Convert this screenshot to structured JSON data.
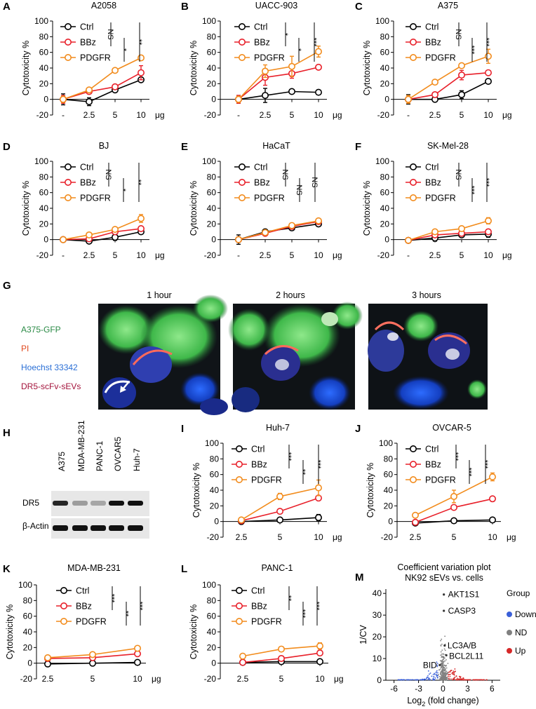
{
  "colors": {
    "Ctrl": "#000000",
    "BBz": "#e8202a",
    "PDGFR": "#f28c1d",
    "micro_gfp": "#2a8a45",
    "micro_pi": "#e0481e",
    "micro_hoechst": "#2a6fd6",
    "micro_dr5": "#a3123a",
    "volcano_down": "#3a5fd8",
    "volcano_nd": "#808080",
    "volcano_up": "#d62828"
  },
  "chart_data": [
    {
      "id": "A",
      "panel": "A",
      "type": "line",
      "title": "A2058",
      "ylabel": "Cytotoxicity %",
      "xunit": "μg",
      "categories": [
        "-",
        "2.5",
        "5",
        "10"
      ],
      "ylim": [
        -20,
        100
      ],
      "yticks": [
        -20,
        0,
        20,
        40,
        60,
        80,
        100
      ],
      "series": [
        {
          "name": "Ctrl",
          "values": [
            0,
            -3,
            12,
            25
          ],
          "errors": [
            7,
            5,
            2,
            2
          ]
        },
        {
          "name": "BBz",
          "values": [
            0,
            10,
            16,
            34
          ],
          "errors": [
            5,
            2,
            2,
            9
          ]
        },
        {
          "name": "PDGFR",
          "values": [
            0,
            12,
            37,
            53
          ],
          "errors": [
            4,
            1,
            2,
            3
          ]
        }
      ],
      "brackets": [
        {
          "text": "NS",
          "from": "Ctrl",
          "to": "BBz",
          "col": 0
        },
        {
          "text": "*",
          "from": "BBz",
          "to": "PDGFR",
          "col": 1
        },
        {
          "text": "**",
          "from": "Ctrl",
          "to": "PDGFR",
          "col": 2
        }
      ]
    },
    {
      "id": "B",
      "panel": "B",
      "type": "line",
      "title": "UACC-903",
      "ylabel": "Cytotoxicity %",
      "xunit": "μg",
      "categories": [
        "-",
        "2.5",
        "5",
        "10"
      ],
      "ylim": [
        -20,
        100
      ],
      "yticks": [
        -20,
        0,
        20,
        40,
        60,
        80,
        100
      ],
      "series": [
        {
          "name": "Ctrl",
          "values": [
            0,
            5,
            10,
            9
          ],
          "errors": [
            5,
            9,
            1,
            1
          ]
        },
        {
          "name": "BBz",
          "values": [
            0,
            28,
            33,
            41
          ],
          "errors": [
            5,
            10,
            6,
            3
          ]
        },
        {
          "name": "PDGFR",
          "values": [
            0,
            36,
            42,
            61
          ],
          "errors": [
            4,
            8,
            13,
            7
          ]
        }
      ],
      "brackets": [
        {
          "text": "*",
          "from": "Ctrl",
          "to": "BBz",
          "col": 0
        },
        {
          "text": "*",
          "from": "BBz",
          "to": "PDGFR",
          "col": 1
        },
        {
          "text": "***",
          "from": "Ctrl",
          "to": "PDGFR",
          "col": 2
        }
      ]
    },
    {
      "id": "C",
      "panel": "C",
      "type": "line",
      "title": "A375",
      "ylabel": "Cytotoxicity %",
      "xunit": "μg",
      "categories": [
        "-",
        "2.5",
        "5",
        "10"
      ],
      "ylim": [
        -20,
        100
      ],
      "yticks": [
        -20,
        0,
        20,
        40,
        60,
        80,
        100
      ],
      "series": [
        {
          "name": "Ctrl",
          "values": [
            0,
            0,
            6,
            23
          ],
          "errors": [
            6,
            1,
            5,
            1
          ]
        },
        {
          "name": "BBz",
          "values": [
            0,
            6,
            31,
            34
          ],
          "errors": [
            2,
            2,
            6,
            1
          ]
        },
        {
          "name": "PDGFR",
          "values": [
            0,
            22,
            43,
            55
          ],
          "errors": [
            5,
            1,
            2,
            9
          ]
        }
      ],
      "brackets": [
        {
          "text": "NS",
          "from": "Ctrl",
          "to": "BBz",
          "col": 0
        },
        {
          "text": "***",
          "from": "BBz",
          "to": "PDGFR",
          "col": 1
        },
        {
          "text": "***",
          "from": "Ctrl",
          "to": "PDGFR",
          "col": 2
        }
      ]
    },
    {
      "id": "D",
      "panel": "D",
      "type": "line",
      "title": "BJ",
      "ylabel": "Cytotoxicity %",
      "xunit": "μg",
      "categories": [
        "-",
        "2.5",
        "5",
        "10"
      ],
      "ylim": [
        -20,
        100
      ],
      "yticks": [
        -20,
        0,
        20,
        40,
        60,
        80,
        100
      ],
      "series": [
        {
          "name": "Ctrl",
          "values": [
            0,
            -2,
            3,
            10
          ],
          "errors": [
            2,
            1,
            4,
            1
          ]
        },
        {
          "name": "BBz",
          "values": [
            0,
            1,
            10,
            14
          ],
          "errors": [
            1,
            1,
            2,
            1
          ]
        },
        {
          "name": "PDGFR",
          "values": [
            0,
            6,
            13,
            27
          ],
          "errors": [
            1,
            1,
            2,
            5
          ]
        }
      ],
      "brackets": [
        {
          "text": "NS",
          "from": "Ctrl",
          "to": "BBz",
          "col": 0
        },
        {
          "text": "*",
          "from": "BBz",
          "to": "PDGFR",
          "col": 1
        },
        {
          "text": "**",
          "from": "Ctrl",
          "to": "PDGFR",
          "col": 2
        }
      ]
    },
    {
      "id": "E",
      "panel": "E",
      "type": "line",
      "title": "HaCaT",
      "ylabel": "Cytotoxicity %",
      "xunit": "μg",
      "categories": [
        "-",
        "2.5",
        "5",
        "10"
      ],
      "ylim": [
        -20,
        100
      ],
      "yticks": [
        -20,
        0,
        20,
        40,
        60,
        80,
        100
      ],
      "series": [
        {
          "name": "Ctrl",
          "values": [
            0,
            10,
            15,
            20
          ],
          "errors": [
            6,
            3,
            2,
            3
          ]
        },
        {
          "name": "BBz",
          "values": [
            0,
            8,
            17,
            23
          ],
          "errors": [
            3,
            2,
            1,
            2
          ]
        },
        {
          "name": "PDGFR",
          "values": [
            0,
            9,
            18,
            24
          ],
          "errors": [
            2,
            1,
            1,
            2
          ]
        }
      ],
      "brackets": [
        {
          "text": "NS",
          "from": "Ctrl",
          "to": "BBz",
          "col": 0
        },
        {
          "text": "NS",
          "from": "BBz",
          "to": "PDGFR",
          "col": 1
        },
        {
          "text": "NS",
          "from": "Ctrl",
          "to": "PDGFR",
          "col": 2
        }
      ]
    },
    {
      "id": "F",
      "panel": "F",
      "type": "line",
      "title": "SK-Mel-28",
      "ylabel": "Cytotoxicity %",
      "xunit": "μg",
      "categories": [
        "-",
        "2.5",
        "5",
        "10"
      ],
      "ylim": [
        -20,
        100
      ],
      "yticks": [
        -20,
        0,
        20,
        40,
        60,
        80,
        100
      ],
      "series": [
        {
          "name": "Ctrl",
          "values": [
            -1,
            2,
            6,
            7
          ],
          "errors": [
            3,
            4,
            2,
            4
          ]
        },
        {
          "name": "BBz",
          "values": [
            -1,
            6,
            8,
            10
          ],
          "errors": [
            2,
            2,
            2,
            3
          ]
        },
        {
          "name": "PDGFR",
          "values": [
            -1,
            10,
            14,
            24
          ],
          "errors": [
            1,
            1,
            2,
            4
          ]
        }
      ],
      "brackets": [
        {
          "text": "NS",
          "from": "Ctrl",
          "to": "BBz",
          "col": 0
        },
        {
          "text": "***",
          "from": "BBz",
          "to": "PDGFR",
          "col": 1
        },
        {
          "text": "***",
          "from": "Ctrl",
          "to": "PDGFR",
          "col": 2
        }
      ]
    },
    {
      "id": "I",
      "panel": "I",
      "type": "line",
      "title": "Huh-7",
      "ylabel": "Cytotoxicity %",
      "xunit": "μg",
      "categories": [
        "2.5",
        "5",
        "10"
      ],
      "ylim": [
        -20,
        100
      ],
      "yticks": [
        -20,
        0,
        20,
        40,
        60,
        80,
        100
      ],
      "series": [
        {
          "name": "Ctrl",
          "values": [
            0,
            2,
            5
          ],
          "errors": [
            1,
            1,
            4
          ]
        },
        {
          "name": "BBz",
          "values": [
            1,
            13,
            30
          ],
          "errors": [
            2,
            3,
            2
          ]
        },
        {
          "name": "PDGFR",
          "values": [
            2,
            32,
            43
          ],
          "errors": [
            2,
            4,
            10
          ]
        }
      ],
      "brackets": [
        {
          "text": "***",
          "from": "Ctrl",
          "to": "BBz",
          "col": 0
        },
        {
          "text": "**",
          "from": "BBz",
          "to": "PDGFR",
          "col": 1
        },
        {
          "text": "***",
          "from": "Ctrl",
          "to": "PDGFR",
          "col": 2
        }
      ]
    },
    {
      "id": "J",
      "panel": "J",
      "type": "line",
      "title": "OVCAR-5",
      "ylabel": "Cytotoxicity %",
      "xunit": "μg",
      "categories": [
        "2.5",
        "5",
        "10"
      ],
      "ylim": [
        -20,
        100
      ],
      "yticks": [
        -20,
        0,
        20,
        40,
        60,
        80,
        100
      ],
      "series": [
        {
          "name": "Ctrl",
          "values": [
            -2,
            1,
            2
          ],
          "errors": [
            2,
            2,
            2
          ]
        },
        {
          "name": "BBz",
          "values": [
            -1,
            18,
            29
          ],
          "errors": [
            2,
            3,
            2
          ]
        },
        {
          "name": "PDGFR",
          "values": [
            8,
            32,
            57
          ],
          "errors": [
            2,
            8,
            5
          ]
        }
      ],
      "brackets": [
        {
          "text": "***",
          "from": "Ctrl",
          "to": "BBz",
          "col": 0
        },
        {
          "text": "***",
          "from": "BBz",
          "to": "PDGFR",
          "col": 1
        },
        {
          "text": "***",
          "from": "Ctrl",
          "to": "PDGFR",
          "col": 2
        }
      ]
    },
    {
      "id": "K",
      "panel": "K",
      "type": "line",
      "title": "MDA-MB-231",
      "ylabel": "Cytotoxicity %",
      "xunit": "μg",
      "categories": [
        "2.5",
        "5",
        "10"
      ],
      "ylim": [
        -20,
        100
      ],
      "yticks": [
        -20,
        0,
        20,
        40,
        60,
        80,
        100
      ],
      "series": [
        {
          "name": "Ctrl",
          "values": [
            -1,
            0,
            1
          ],
          "errors": [
            1,
            1,
            1
          ]
        },
        {
          "name": "BBz",
          "values": [
            6,
            7,
            12
          ],
          "errors": [
            1,
            1,
            1
          ]
        },
        {
          "name": "PDGFR",
          "values": [
            7,
            11,
            19
          ],
          "errors": [
            1,
            1,
            1
          ]
        }
      ],
      "brackets": [
        {
          "text": "***",
          "from": "Ctrl",
          "to": "BBz",
          "col": 0
        },
        {
          "text": "**",
          "from": "BBz",
          "to": "PDGFR",
          "col": 1
        },
        {
          "text": "***",
          "from": "Ctrl",
          "to": "PDGFR",
          "col": 2
        }
      ]
    },
    {
      "id": "L",
      "panel": "L",
      "type": "line",
      "title": "PANC-1",
      "ylabel": "Cytotoxicity %",
      "xunit": "μg",
      "categories": [
        "2.5",
        "5",
        "10"
      ],
      "ylim": [
        -20,
        100
      ],
      "yticks": [
        -20,
        0,
        20,
        40,
        60,
        80,
        100
      ],
      "series": [
        {
          "name": "Ctrl",
          "values": [
            1,
            2,
            2
          ],
          "errors": [
            1,
            1,
            2
          ]
        },
        {
          "name": "BBz",
          "values": [
            1,
            6,
            13
          ],
          "errors": [
            1,
            3,
            3
          ]
        },
        {
          "name": "PDGFR",
          "values": [
            9,
            18,
            22
          ],
          "errors": [
            1,
            2,
            4
          ]
        }
      ],
      "brackets": [
        {
          "text": "**",
          "from": "Ctrl",
          "to": "BBz",
          "col": 0
        },
        {
          "text": "***",
          "from": "BBz",
          "to": "PDGFR",
          "col": 1
        },
        {
          "text": "***",
          "from": "Ctrl",
          "to": "PDGFR",
          "col": 2
        }
      ]
    },
    {
      "id": "M",
      "panel": "M",
      "type": "scatter",
      "title": "Coefficient variation plot",
      "subtitle": "NK92 sEVs vs. cells",
      "xlabel": "Log2 (fold change)",
      "xlabel_main": "Log",
      "xlabel_sub": "2",
      "xlabel_rest": " (fold change)",
      "ylabel": "1/CV",
      "xlim": [
        -7,
        7
      ],
      "ylim": [
        0,
        42
      ],
      "xticks": [
        -6,
        -3,
        0,
        3,
        6
      ],
      "yticks": [
        0,
        10,
        20,
        30,
        40
      ],
      "legend_title": "Group",
      "legend": [
        "Down",
        "ND",
        "Up"
      ],
      "labeled_points": [
        {
          "label": "AKT1S1",
          "x": 0.1,
          "y": 39.5
        },
        {
          "label": "CASP3",
          "x": 0.1,
          "y": 32.0
        },
        {
          "label": "LC3A/B",
          "x": 0.2,
          "y": 16.0
        },
        {
          "label": "BCL2L11",
          "x": 0.4,
          "y": 11.5
        },
        {
          "label": "BID",
          "x": -0.4,
          "y": 7.0
        }
      ]
    }
  ],
  "panel_G": {
    "label": "G",
    "times": [
      "1 hour",
      "2 hours",
      "3 hours"
    ],
    "legend": [
      "A375-GFP",
      "PI",
      "Hoechst 33342",
      "DR5-scFv-sEVs"
    ]
  },
  "panel_H": {
    "label": "H",
    "lanes": [
      "A375",
      "MDA-MB-231",
      "PANC-1",
      "OVCAR5",
      "Huh-7"
    ],
    "rows": [
      "DR5",
      "β-Actin"
    ],
    "dr5_intensity": [
      0.9,
      0.35,
      0.3,
      1.0,
      1.0
    ],
    "actin_intensity": [
      1.0,
      1.0,
      1.0,
      1.0,
      1.0
    ]
  }
}
